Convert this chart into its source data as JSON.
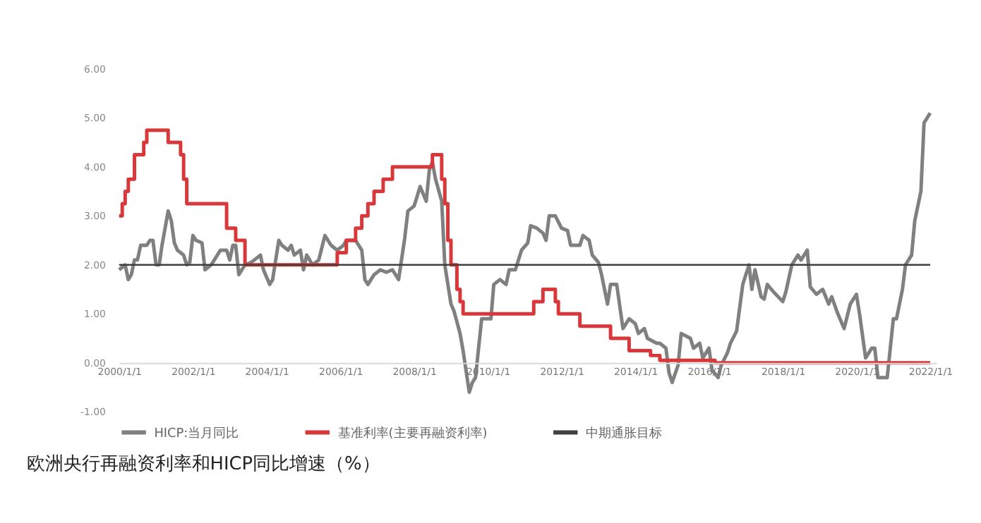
{
  "chart_data": {
    "type": "line",
    "title": "欧洲央行再融资利率和HICP同比增速（%）",
    "xlim": [
      "2000-01",
      "2022-03"
    ],
    "xticks": [
      {
        "value": "2000-01",
        "label": "2000/1/1"
      },
      {
        "value": "2002-01",
        "label": "2002/1/1"
      },
      {
        "value": "2004-01",
        "label": "2004/1/1"
      },
      {
        "value": "2006-01",
        "label": "2006/1/1"
      },
      {
        "value": "2008-01",
        "label": "2008/1/1"
      },
      {
        "value": "2010-01",
        "label": "2010/1/1"
      },
      {
        "value": "2012-01",
        "label": "2012/1/1"
      },
      {
        "value": "2014-01",
        "label": "2014/1/1"
      },
      {
        "value": "2016-01",
        "label": "2016/1/1"
      },
      {
        "value": "2018-01",
        "label": "2018/1/1"
      },
      {
        "value": "2020-01",
        "label": "2020/1/1"
      },
      {
        "value": "2022-01",
        "label": "2022/1/1"
      }
    ],
    "ylim": [
      -1,
      6
    ],
    "yticks": [
      {
        "value": -1,
        "label": "-1.00"
      },
      {
        "value": 0,
        "label": "0.00"
      },
      {
        "value": 1,
        "label": "1.00"
      },
      {
        "value": 2,
        "label": "2.00"
      },
      {
        "value": 3,
        "label": "3.00"
      },
      {
        "value": 4,
        "label": "4.00"
      },
      {
        "value": 5,
        "label": "5.00"
      },
      {
        "value": 6,
        "label": "6.00"
      }
    ],
    "grid": false,
    "legend": "bottom",
    "marker": "none",
    "line_style": "solid",
    "series": [
      {
        "name": "HICP:当月同比",
        "color": "#808080",
        "x": [
          "2000-01",
          "2000-03",
          "2000-04",
          "2000-05",
          "2000-06",
          "2000-07",
          "2000-08",
          "2000-10",
          "2000-11",
          "2000-12",
          "2001-01",
          "2001-02",
          "2001-03",
          "2001-05",
          "2001-06",
          "2001-07",
          "2001-08",
          "2001-10",
          "2001-11",
          "2001-12",
          "2002-01",
          "2002-02",
          "2002-04",
          "2002-05",
          "2002-07",
          "2002-08",
          "2002-10",
          "2002-12",
          "2003-01",
          "2003-02",
          "2003-03",
          "2003-04",
          "2003-06",
          "2003-08",
          "2003-09",
          "2003-11",
          "2003-12",
          "2004-02",
          "2004-03",
          "2004-05",
          "2004-06",
          "2004-08",
          "2004-09",
          "2004-10",
          "2004-12",
          "2005-01",
          "2005-02",
          "2005-04",
          "2005-06",
          "2005-08",
          "2005-10",
          "2005-12",
          "2006-02",
          "2006-03",
          "2006-06",
          "2006-08",
          "2006-09",
          "2006-10",
          "2006-12",
          "2007-02",
          "2007-04",
          "2007-06",
          "2007-08",
          "2007-10",
          "2007-11",
          "2008-01",
          "2008-02",
          "2008-03",
          "2008-05",
          "2008-06",
          "2008-07",
          "2008-08",
          "2008-10",
          "2008-11",
          "2009-01",
          "2009-02",
          "2009-04",
          "2009-05",
          "2009-07",
          "2009-08",
          "2009-09",
          "2009-11",
          "2010-02",
          "2010-03",
          "2010-05",
          "2010-07",
          "2010-08",
          "2010-10",
          "2010-12",
          "2011-02",
          "2011-03",
          "2011-05",
          "2011-07",
          "2011-08",
          "2011-09",
          "2011-11",
          "2012-01",
          "2012-03",
          "2012-04",
          "2012-07",
          "2012-08",
          "2012-10",
          "2012-11",
          "2013-01",
          "2013-02",
          "2013-04",
          "2013-05",
          "2013-07",
          "2013-08",
          "2013-09",
          "2013-11",
          "2014-01",
          "2014-02",
          "2014-04",
          "2014-05",
          "2014-08",
          "2014-09",
          "2014-11",
          "2014-12",
          "2015-01",
          "2015-03",
          "2015-04",
          "2015-07",
          "2015-08",
          "2015-10",
          "2015-11",
          "2016-01",
          "2016-02",
          "2016-04",
          "2016-05",
          "2016-07",
          "2016-08",
          "2016-10",
          "2016-12",
          "2017-02",
          "2017-03",
          "2017-04",
          "2017-06",
          "2017-07",
          "2017-08",
          "2017-10",
          "2018-01",
          "2018-02",
          "2018-04",
          "2018-06",
          "2018-07",
          "2018-09",
          "2018-10",
          "2018-12",
          "2019-02",
          "2019-04",
          "2019-05",
          "2019-07",
          "2019-09",
          "2019-11",
          "2020-01",
          "2020-02",
          "2020-04",
          "2020-06",
          "2020-07",
          "2020-08",
          "2020-11",
          "2021-01",
          "2021-02",
          "2021-04",
          "2021-05",
          "2021-07",
          "2021-08",
          "2021-10",
          "2021-11",
          "2022-01"
        ],
        "values": [
          1.9,
          2.0,
          1.7,
          1.8,
          2.1,
          2.1,
          2.4,
          2.4,
          2.5,
          2.5,
          2.0,
          2.0,
          2.4,
          3.1,
          2.9,
          2.45,
          2.3,
          2.2,
          2.0,
          2.05,
          2.6,
          2.5,
          2.45,
          1.9,
          2.0,
          2.1,
          2.3,
          2.3,
          2.1,
          2.4,
          2.4,
          1.8,
          2.0,
          2.05,
          2.1,
          2.2,
          1.9,
          1.6,
          1.7,
          2.5,
          2.4,
          2.3,
          2.4,
          2.2,
          2.3,
          1.9,
          2.2,
          2.0,
          2.1,
          2.6,
          2.4,
          2.3,
          2.4,
          2.5,
          2.5,
          2.3,
          1.7,
          1.6,
          1.8,
          1.9,
          1.85,
          1.9,
          1.7,
          2.55,
          3.1,
          3.2,
          3.4,
          3.6,
          3.3,
          3.95,
          4.1,
          3.75,
          3.3,
          2.0,
          1.2,
          1.05,
          0.6,
          0.25,
          -0.6,
          -0.4,
          -0.3,
          0.9,
          0.9,
          1.6,
          1.7,
          1.6,
          1.9,
          1.9,
          2.3,
          2.45,
          2.8,
          2.75,
          2.65,
          2.5,
          3.0,
          3.0,
          2.75,
          2.7,
          2.4,
          2.4,
          2.6,
          2.5,
          2.2,
          2.05,
          1.8,
          1.2,
          1.6,
          1.6,
          1.15,
          0.7,
          0.9,
          0.8,
          0.6,
          0.7,
          0.5,
          0.4,
          0.4,
          0.3,
          -0.2,
          -0.4,
          -0.05,
          0.6,
          0.5,
          0.3,
          0.4,
          0.1,
          0.3,
          -0.15,
          -0.3,
          -0.05,
          0.2,
          0.4,
          0.65,
          1.6,
          2.0,
          1.5,
          1.9,
          1.35,
          1.3,
          1.6,
          1.45,
          1.25,
          1.45,
          2.0,
          2.2,
          2.1,
          2.3,
          1.55,
          1.4,
          1.5,
          1.2,
          1.35,
          1.0,
          0.7,
          1.2,
          1.4,
          1.0,
          0.1,
          0.3,
          0.3,
          -0.3,
          -0.3,
          0.9,
          0.9,
          1.5,
          2.0,
          2.2,
          2.9,
          3.5,
          4.9,
          5.1
        ]
      },
      {
        "name": "基准利率(主要再融资利率)",
        "color": "#d9383a",
        "type": "step",
        "x": [
          "2000-01",
          "2000-02",
          "2000-03",
          "2000-04",
          "2000-06",
          "2000-09",
          "2000-10",
          "2001-05",
          "2001-09",
          "2001-10",
          "2001-11",
          "2002-12",
          "2003-03",
          "2003-06",
          "2005-12",
          "2006-03",
          "2006-06",
          "2006-08",
          "2006-10",
          "2006-12",
          "2007-03",
          "2007-06",
          "2008-07",
          "2008-10",
          "2008-11",
          "2008-12",
          "2009-01",
          "2009-03",
          "2009-04",
          "2009-05",
          "2011-04",
          "2011-07",
          "2011-11",
          "2011-12",
          "2012-07",
          "2013-05",
          "2013-11",
          "2014-06",
          "2014-09",
          "2016-03",
          "2022-01"
        ],
        "values": [
          3.0,
          3.25,
          3.5,
          3.75,
          4.25,
          4.5,
          4.75,
          4.5,
          4.25,
          3.75,
          3.25,
          2.75,
          2.5,
          2.0,
          2.25,
          2.5,
          2.75,
          3.0,
          3.25,
          3.5,
          3.75,
          4.0,
          4.25,
          3.75,
          3.25,
          2.5,
          2.0,
          1.5,
          1.25,
          1.0,
          1.25,
          1.5,
          1.25,
          1.0,
          0.75,
          0.5,
          0.25,
          0.15,
          0.05,
          0.0,
          0.0
        ]
      },
      {
        "name": "中期通胀目标",
        "color": "#404040",
        "x": [
          "2000-01",
          "2022-01"
        ],
        "values": [
          2.0,
          2.0
        ]
      }
    ]
  }
}
